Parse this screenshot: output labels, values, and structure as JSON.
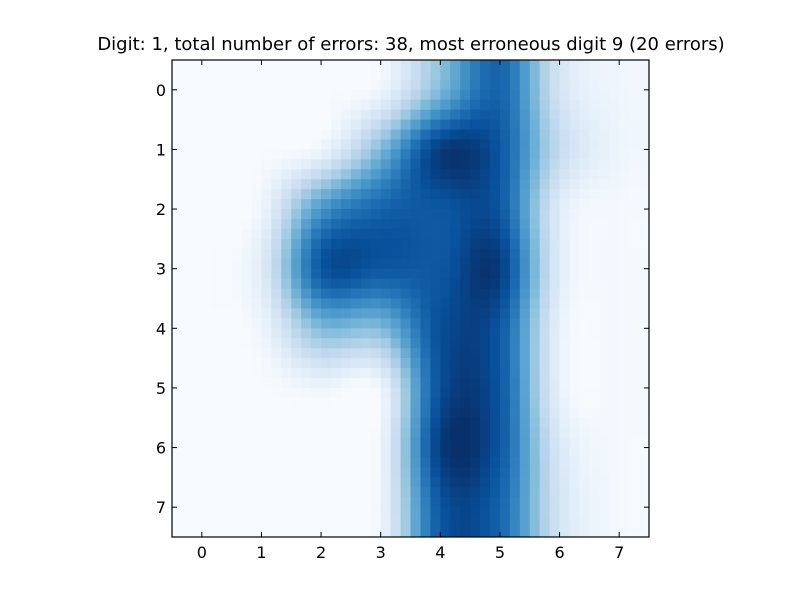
{
  "chart_data": {
    "type": "heatmap",
    "title": "Digit: 1, total number of errors: 38, most erroneous digit 9 (20 errors)",
    "xlabel": "",
    "ylabel": "",
    "x_ticks": [
      "0",
      "1",
      "2",
      "3",
      "4",
      "5",
      "6",
      "7"
    ],
    "y_ticks": [
      "0",
      "1",
      "2",
      "3",
      "4",
      "5",
      "6",
      "7"
    ],
    "xlim": [
      -0.5,
      7.5
    ],
    "ylim": [
      7.5,
      -0.5
    ],
    "colormap": "Blues",
    "interpolation": "bicubic",
    "grid": false,
    "values": [
      [
        0.0,
        0.0,
        0.0,
        0.05,
        0.45,
        0.8,
        0.18,
        0.04
      ],
      [
        0.0,
        0.0,
        0.05,
        0.45,
        0.95,
        0.85,
        0.25,
        0.05
      ],
      [
        0.0,
        0.05,
        0.6,
        0.8,
        0.85,
        0.85,
        0.12,
        0.02
      ],
      [
        0.0,
        0.12,
        0.85,
        0.85,
        0.85,
        0.95,
        0.12,
        0.02
      ],
      [
        0.0,
        0.05,
        0.45,
        0.45,
        0.88,
        0.85,
        0.08,
        0.02
      ],
      [
        0.0,
        0.0,
        0.05,
        0.05,
        0.88,
        0.85,
        0.08,
        0.02
      ],
      [
        0.0,
        0.0,
        0.0,
        0.05,
        0.95,
        0.85,
        0.15,
        0.02
      ],
      [
        0.0,
        0.0,
        0.0,
        0.05,
        0.85,
        0.8,
        0.18,
        0.02
      ]
    ]
  }
}
